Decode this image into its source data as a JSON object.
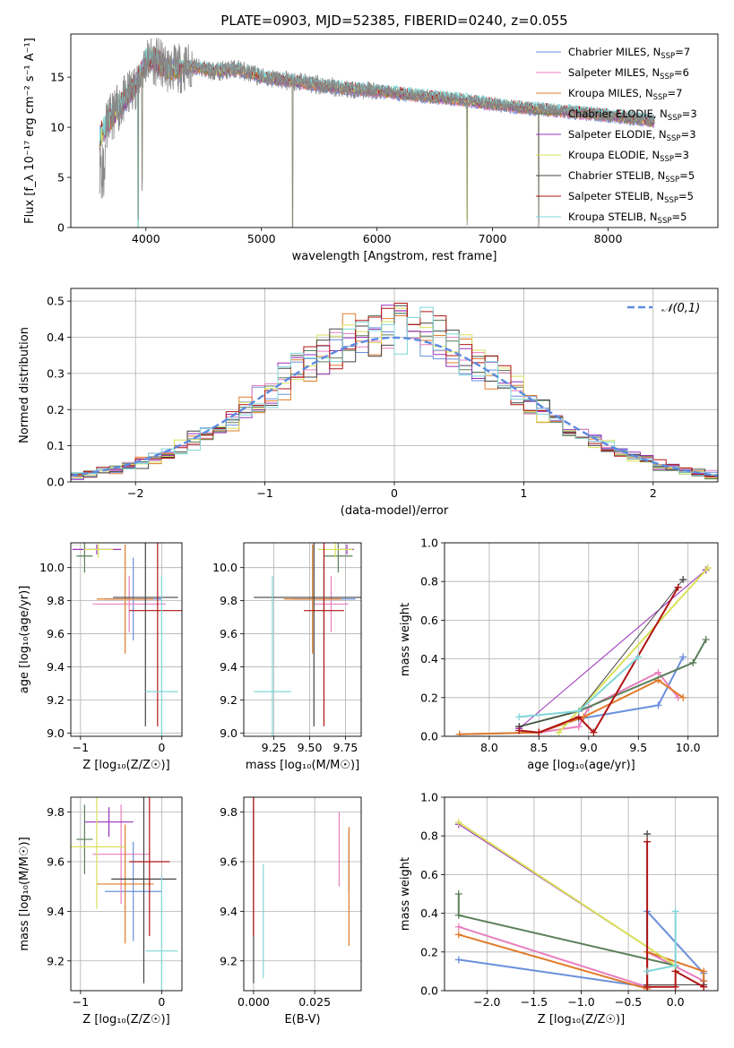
{
  "figure": {
    "title": "PLATE=0903, MJD=52385, FIBERID=0240, z=0.055"
  },
  "model_colors": [
    "#6a8fdc",
    "#e87fbf",
    "#e07b2a",
    "#5a7f5a",
    "#9a30b8",
    "#d9e05a",
    "#444444",
    "#b01414",
    "#7fd6d8"
  ],
  "chart_data": [
    {
      "id": "spectrum",
      "type": "line",
      "xlabel": "wavelength [Angstrom, rest frame]",
      "ylabel": "Flux [f_λ 10⁻¹⁷ erg cm⁻² s⁻¹ A⁻¹]",
      "xlim": [
        3350,
        8950
      ],
      "ylim": [
        0,
        19.3
      ],
      "xticks": [
        4000,
        5000,
        6000,
        7000,
        8000
      ],
      "yticks": [
        0,
        5,
        10,
        15
      ],
      "grid": false,
      "legend_position": "top-right",
      "data_color": "#888888",
      "continuum": {
        "x": [
          3600,
          3700,
          3800,
          3900,
          4000,
          4050,
          4200,
          4400,
          4600,
          4800,
          5000,
          5200,
          5500,
          5800,
          6100,
          6400,
          6700,
          7000,
          7300,
          7600,
          7900,
          8200,
          8400
        ],
        "y": [
          9.0,
          11.0,
          12.5,
          14.0,
          16.5,
          16.8,
          15.8,
          16.0,
          15.6,
          15.8,
          15.0,
          14.7,
          14.2,
          13.8,
          13.5,
          13.1,
          12.8,
          12.3,
          11.9,
          11.6,
          11.3,
          10.9,
          10.6
        ]
      },
      "absorption_features": [
        {
          "x": 3933,
          "depth": 16.5
        },
        {
          "x": 3968,
          "depth": 11
        },
        {
          "x": 5270,
          "depth": 16
        },
        {
          "x": 6780,
          "depth": 12
        },
        {
          "x": 7400,
          "depth": 11.5
        }
      ],
      "legend": [
        {
          "name": "Chabrier MILES",
          "nssp": "7"
        },
        {
          "name": "Salpeter MILES",
          "nssp": "6"
        },
        {
          "name": "Kroupa MILES",
          "nssp": "7"
        },
        {
          "name": "Chabrier ELODIE",
          "nssp": "3"
        },
        {
          "name": "Salpeter ELODIE",
          "nssp": "3"
        },
        {
          "name": "Kroupa ELODIE",
          "nssp": "3"
        },
        {
          "name": "Chabrier STELIB",
          "nssp": "5"
        },
        {
          "name": "Salpeter STELIB",
          "nssp": "5"
        },
        {
          "name": "Kroupa STELIB",
          "nssp": "5"
        }
      ]
    },
    {
      "id": "residuals",
      "type": "histogram",
      "xlabel": "(data-model)/error",
      "ylabel": "Normed distribution",
      "xlim": [
        -2.5,
        2.5
      ],
      "ylim": [
        0,
        0.535
      ],
      "xticks": [
        -2,
        -1,
        0,
        1,
        2
      ],
      "yticks": [
        0.0,
        0.1,
        0.2,
        0.3,
        0.4,
        0.5
      ],
      "grid": true,
      "bin_width": 0.1,
      "bin_start": -2.5,
      "reference_curve": {
        "label": "𝒩(0,1)",
        "color": "#5b8ae0",
        "style": "dashed"
      },
      "legend_position": "top-right",
      "base_values": [
        0.02,
        0.024,
        0.029,
        0.036,
        0.045,
        0.055,
        0.067,
        0.08,
        0.096,
        0.113,
        0.133,
        0.154,
        0.177,
        0.201,
        0.226,
        0.252,
        0.278,
        0.304,
        0.329,
        0.352,
        0.373,
        0.391,
        0.406,
        0.416,
        0.421,
        0.421,
        0.416,
        0.406,
        0.391,
        0.373,
        0.352,
        0.329,
        0.304,
        0.278,
        0.252,
        0.226,
        0.201,
        0.177,
        0.154,
        0.133,
        0.113,
        0.096,
        0.08,
        0.067,
        0.055,
        0.045,
        0.036,
        0.029,
        0.024,
        0.02
      ]
    },
    {
      "id": "age_vs_Z",
      "type": "errorbar",
      "xlabel": "Z [log₁₀(Z/Z☉)]",
      "ylabel": "age  [log₁₀(age/yr)]",
      "xlim": [
        -1.12,
        0.25
      ],
      "ylim": [
        8.98,
        10.15
      ],
      "xticks": [
        -1,
        0
      ],
      "yticks": [
        9.0,
        9.2,
        9.4,
        9.6,
        9.8,
        10.0
      ],
      "grid": true,
      "points": [
        {
          "x": -0.35,
          "y": 9.81,
          "xerr": 0.35,
          "yerr": 0.25
        },
        {
          "x": -0.4,
          "y": 9.78,
          "xerr": 0.45,
          "yerr": 0.17
        },
        {
          "x": -0.45,
          "y": 9.81,
          "xerr": 0.35,
          "yerr": 0.33
        },
        {
          "x": -0.95,
          "y": 10.07,
          "xerr": 0.1,
          "yerr": 0.1
        },
        {
          "x": -0.8,
          "y": 10.11,
          "xerr": 0.3,
          "yerr": 0.03
        },
        {
          "x": -0.78,
          "y": 10.11,
          "xerr": 0.18,
          "yerr": 0.05
        },
        {
          "x": -0.2,
          "y": 9.82,
          "xerr": 0.4,
          "yerr": 0.78
        },
        {
          "x": -0.05,
          "y": 9.74,
          "xerr": 0.35,
          "yerr": 0.7
        },
        {
          "x": 0.0,
          "y": 9.25,
          "xerr": 0.2,
          "yerr": 0.7
        }
      ]
    },
    {
      "id": "age_vs_mass",
      "type": "errorbar",
      "xlabel": "mass [log₁₀(M/M☉)]",
      "ylabel": "",
      "xlim": [
        9.04,
        9.86
      ],
      "ylim": [
        8.98,
        10.15
      ],
      "xticks": [
        9.25,
        9.5,
        9.75
      ],
      "yticks": [
        9.0,
        9.2,
        9.4,
        9.6,
        9.8,
        10.0
      ],
      "grid": true,
      "points": [
        {
          "x": 9.6,
          "y": 9.81,
          "xerr": 0.22,
          "yerr": 0.25
        },
        {
          "x": 9.65,
          "y": 9.78,
          "xerr": 0.12,
          "yerr": 0.17
        },
        {
          "x": 9.52,
          "y": 9.81,
          "xerr": 0.2,
          "yerr": 0.33
        },
        {
          "x": 9.7,
          "y": 10.07,
          "xerr": 0.1,
          "yerr": 0.1
        },
        {
          "x": 9.76,
          "y": 10.11,
          "xerr": 0.05,
          "yerr": 0.03
        },
        {
          "x": 9.68,
          "y": 10.11,
          "xerr": 0.12,
          "yerr": 0.05
        },
        {
          "x": 9.53,
          "y": 9.82,
          "xerr": 0.42,
          "yerr": 0.78
        },
        {
          "x": 9.6,
          "y": 9.74,
          "xerr": 0.14,
          "yerr": 0.7
        },
        {
          "x": 9.24,
          "y": 9.25,
          "xerr": 0.13,
          "yerr": 0.7
        }
      ]
    },
    {
      "id": "mass_weight_vs_age",
      "type": "line",
      "xlabel": "age  [log₁₀(age/yr)]",
      "ylabel": "mass weight",
      "xlim": [
        7.55,
        10.3
      ],
      "ylim": [
        0,
        1.0
      ],
      "xticks": [
        8.0,
        8.5,
        9.0,
        9.5,
        10.0
      ],
      "yticks": [
        0.0,
        0.2,
        0.4,
        0.6,
        0.8,
        1.0
      ],
      "grid": true,
      "series": [
        {
          "x": [
            7.7,
            8.5,
            8.9,
            9.7,
            9.95
          ],
          "y": [
            0.01,
            0.02,
            0.09,
            0.16,
            0.41
          ]
        },
        {
          "x": [
            8.5,
            8.9,
            9.0,
            9.7,
            9.9
          ],
          "y": [
            0.02,
            0.05,
            0.15,
            0.33,
            0.2
          ]
        },
        {
          "x": [
            7.7,
            8.5,
            8.95,
            9.7,
            9.95
          ],
          "y": [
            0.01,
            0.02,
            0.1,
            0.29,
            0.2
          ]
        },
        {
          "x": [
            8.3,
            8.9,
            10.05,
            10.18
          ],
          "y": [
            0.05,
            0.13,
            0.38,
            0.5
          ]
        },
        {
          "x": [
            8.3,
            10.18
          ],
          "y": [
            0.04,
            0.86
          ]
        },
        {
          "x": [
            8.7,
            10.2
          ],
          "y": [
            0.02,
            0.87
          ]
        },
        {
          "x": [
            8.3,
            8.9,
            9.95
          ],
          "y": [
            0.05,
            0.13,
            0.81
          ]
        },
        {
          "x": [
            8.3,
            8.5,
            8.9,
            9.05,
            9.9
          ],
          "y": [
            0.03,
            0.02,
            0.1,
            0.02,
            0.77
          ]
        },
        {
          "x": [
            8.3,
            8.9,
            9.5
          ],
          "y": [
            0.1,
            0.13,
            0.41
          ]
        }
      ]
    },
    {
      "id": "mass_vs_Z",
      "type": "errorbar",
      "xlabel": "Z [log₁₀(Z/Z☉)]",
      "ylabel": "mass [log₁₀(M/M☉)]",
      "xlim": [
        -1.12,
        0.25
      ],
      "ylim": [
        9.08,
        9.86
      ],
      "xticks": [
        -1,
        0
      ],
      "yticks": [
        9.2,
        9.4,
        9.6,
        9.8
      ],
      "grid": true,
      "points": [
        {
          "x": -0.35,
          "y": 9.48,
          "xerr": 0.35,
          "yerr": 0.2
        },
        {
          "x": -0.5,
          "y": 9.63,
          "xerr": 0.35,
          "yerr": 0.2
        },
        {
          "x": -0.45,
          "y": 9.51,
          "xerr": 0.35,
          "yerr": 0.24
        },
        {
          "x": -0.95,
          "y": 9.69,
          "xerr": 0.1,
          "yerr": 0.14
        },
        {
          "x": -0.65,
          "y": 9.76,
          "xerr": 0.3,
          "yerr": 0.06
        },
        {
          "x": -0.8,
          "y": 9.66,
          "xerr": 0.35,
          "yerr": 0.25
        },
        {
          "x": -0.22,
          "y": 9.53,
          "xerr": 0.4,
          "yerr": 0.42
        },
        {
          "x": -0.15,
          "y": 9.6,
          "xerr": 0.25,
          "yerr": 0.3
        },
        {
          "x": 0.0,
          "y": 9.24,
          "xerr": 0.2,
          "yerr": 0.3
        }
      ]
    },
    {
      "id": "mass_vs_EBV",
      "type": "errorbar",
      "xlabel": "E(B-V)",
      "ylabel": "",
      "xlim": [
        -0.004,
        0.044
      ],
      "ylim": [
        9.08,
        9.86
      ],
      "xticks": [
        0.0,
        0.025
      ],
      "xticklabels": [
        "0.000",
        "0.025"
      ],
      "yticks": [
        9.2,
        9.4,
        9.6,
        9.8
      ],
      "grid": true,
      "points": [
        {
          "x": 0.039,
          "y": 9.6,
          "xerr": 0.0,
          "yerr": 0.12
        },
        {
          "x": 0.035,
          "y": 9.65,
          "xerr": 0.0,
          "yerr": 0.15
        },
        {
          "x": 0.039,
          "y": 9.5,
          "xerr": 0.0,
          "yerr": 0.24
        },
        {
          "x": 0.0,
          "y": 9.62,
          "xerr": 0.0,
          "yerr": 0.1
        },
        {
          "x": 0.0,
          "y": 9.76,
          "xerr": 0.0,
          "yerr": 0.06
        },
        {
          "x": 0.0,
          "y": 9.66,
          "xerr": 0.0,
          "yerr": 0.06
        },
        {
          "x": 0.0,
          "y": 9.53,
          "xerr": 0.0,
          "yerr": 0.42
        },
        {
          "x": 0.0,
          "y": 9.6,
          "xerr": 0.0,
          "yerr": 0.3
        },
        {
          "x": 0.004,
          "y": 9.36,
          "xerr": 0.0,
          "yerr": 0.23
        }
      ]
    },
    {
      "id": "mass_weight_vs_Z",
      "type": "line",
      "xlabel": "Z [log₁₀(Z/Z☉)]",
      "ylabel": "mass weight",
      "xlim": [
        -2.45,
        0.45
      ],
      "ylim": [
        0,
        1.0
      ],
      "xticks": [
        -2.0,
        -1.5,
        -1.0,
        -0.5,
        0.0
      ],
      "yticks": [
        0.0,
        0.2,
        0.4,
        0.6,
        0.8,
        1.0
      ],
      "grid": true,
      "series": [
        {
          "x": [
            -2.3,
            -0.3,
            -0.3,
            0.3,
            0.3
          ],
          "y": [
            0.16,
            0.02,
            0.41,
            0.09,
            0.05
          ]
        },
        {
          "x": [
            -2.3,
            -0.3,
            -0.3,
            0.3,
            0.3
          ],
          "y": [
            0.33,
            0.02,
            0.2,
            0.05,
            0.02
          ]
        },
        {
          "x": [
            -2.3,
            -0.3,
            -0.3,
            0.3,
            0.3
          ],
          "y": [
            0.29,
            0.01,
            0.2,
            0.1,
            0.05
          ]
        },
        {
          "x": [
            -2.3,
            -2.3,
            0.0,
            0.0
          ],
          "y": [
            0.5,
            0.39,
            0.13,
            0.1
          ]
        },
        {
          "x": [
            -2.3,
            0.0,
            0.0
          ],
          "y": [
            0.86,
            0.13,
            0.1
          ]
        },
        {
          "x": [
            -2.3,
            0.0,
            0.0
          ],
          "y": [
            0.87,
            0.13,
            0.1
          ]
        },
        {
          "x": [
            -0.3,
            -0.3,
            0.3
          ],
          "y": [
            0.81,
            0.03,
            0.03
          ]
        },
        {
          "x": [
            -0.3,
            -0.3,
            0.0,
            0.0,
            0.3
          ],
          "y": [
            0.77,
            0.02,
            0.02,
            0.1,
            0.02
          ]
        },
        {
          "x": [
            -0.3,
            0.0,
            0.0
          ],
          "y": [
            0.1,
            0.13,
            0.41
          ]
        }
      ]
    }
  ]
}
